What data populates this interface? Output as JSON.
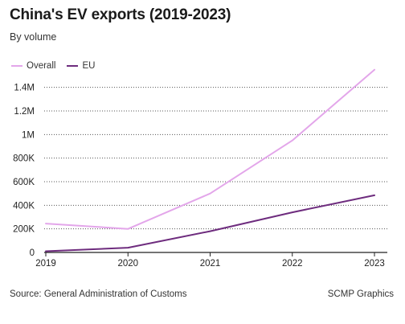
{
  "header": {
    "title": "China's EV exports (2019-2023)",
    "subtitle": "By volume"
  },
  "chart_data": {
    "type": "line",
    "title": "China's EV exports (2019-2023)",
    "subtitle": "By volume",
    "xlabel": "",
    "ylabel": "",
    "x": [
      2019,
      2020,
      2021,
      2022,
      2023
    ],
    "x_tick_labels": [
      "2019",
      "2020",
      "2021",
      "2022",
      "2023"
    ],
    "series": [
      {
        "name": "Overall",
        "color": "#e3a6ea",
        "values": [
          245000,
          200000,
          500000,
          950000,
          1550000
        ]
      },
      {
        "name": "EU",
        "color": "#6e2c7e",
        "values": [
          10000,
          40000,
          180000,
          340000,
          485000
        ]
      }
    ],
    "ylim": [
      0,
      1500000
    ],
    "y_ticks": [
      0,
      200000,
      400000,
      600000,
      800000,
      1000000,
      1200000,
      1400000
    ],
    "y_tick_labels": [
      "0",
      "200K",
      "400K",
      "600K",
      "800K",
      "1M",
      "1.2M",
      "1.4M"
    ],
    "grid": "horizontal-dotted",
    "legend_position": "top-left"
  },
  "footer": {
    "source": "Source: General Administration of Customs",
    "credit": "SCMP Graphics"
  }
}
